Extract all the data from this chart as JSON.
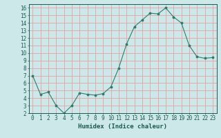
{
  "x": [
    0,
    1,
    2,
    3,
    4,
    5,
    6,
    7,
    8,
    9,
    10,
    11,
    12,
    13,
    14,
    15,
    16,
    17,
    18,
    19,
    20,
    21,
    22,
    23
  ],
  "y": [
    7.0,
    4.5,
    4.8,
    3.0,
    2.0,
    3.0,
    4.7,
    4.5,
    4.4,
    4.6,
    5.5,
    8.0,
    11.2,
    13.5,
    14.4,
    15.3,
    15.2,
    16.0,
    14.8,
    14.0,
    11.0,
    9.5,
    9.3,
    9.4
  ],
  "line_color": "#2d7d6e",
  "marker": "*",
  "marker_size": 2.5,
  "bg_color": "#cce8e8",
  "grid_color": "#e8a0a0",
  "xlabel": "Humidex (Indice chaleur)",
  "xlim": [
    -0.5,
    23.5
  ],
  "ylim": [
    2,
    16.5
  ],
  "yticks": [
    2,
    3,
    4,
    5,
    6,
    7,
    8,
    9,
    10,
    11,
    12,
    13,
    14,
    15,
    16
  ],
  "xticks": [
    0,
    1,
    2,
    3,
    4,
    5,
    6,
    7,
    8,
    9,
    10,
    11,
    12,
    13,
    14,
    15,
    16,
    17,
    18,
    19,
    20,
    21,
    22,
    23
  ],
  "xlabel_fontsize": 6.5,
  "tick_fontsize": 5.5,
  "label_color": "#1a5a50",
  "spine_color": "#1a5a50"
}
